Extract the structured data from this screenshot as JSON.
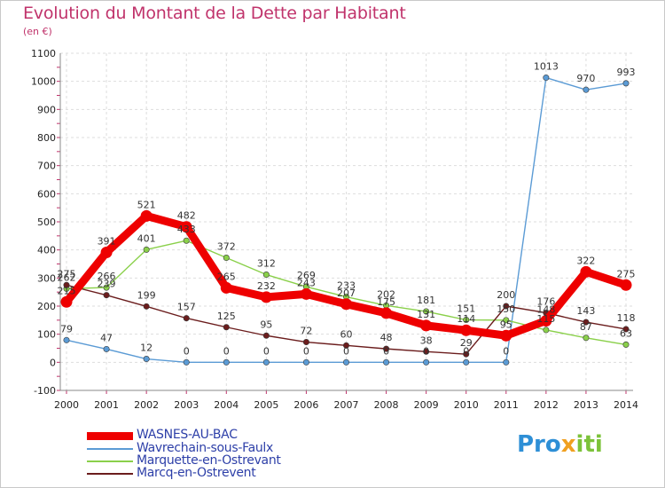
{
  "title": "Evolution du Montant de la Dette par Habitant",
  "subtitle": "(en €)",
  "logo": {
    "part1": "Pro",
    "part2": "x",
    "part3": "iti"
  },
  "chart_data": {
    "type": "line",
    "title": "Evolution du Montant de la Dette par Habitant",
    "subtitle": "(en €)",
    "xlabel": "",
    "ylabel": "",
    "x": [
      2000,
      2001,
      2002,
      2003,
      2004,
      2005,
      2006,
      2007,
      2008,
      2009,
      2010,
      2011,
      2012,
      2013,
      2014
    ],
    "ylim": [
      -100,
      1100
    ],
    "yticks": [
      -100,
      0,
      100,
      200,
      300,
      400,
      500,
      600,
      700,
      800,
      900,
      1000,
      1100
    ],
    "grid": true,
    "legend_position": "bottom-left",
    "series": [
      {
        "name": "WASNES-AU-BAC",
        "color": "#ee0000",
        "values": [
          215,
          391,
          521,
          482,
          265,
          232,
          243,
          207,
          175,
          131,
          114,
          95,
          148,
          322,
          275
        ],
        "labels": [
          "215",
          "391",
          "521",
          "482",
          "265",
          "232",
          "243",
          "207",
          "175",
          "131",
          "114",
          "95",
          "148",
          "322",
          "275"
        ]
      },
      {
        "name": "Wavrechain-sous-Faulx",
        "color": "#5b9bd5",
        "values": [
          79,
          47,
          12,
          0,
          0,
          0,
          0,
          0,
          0,
          0,
          0,
          0,
          1013,
          970,
          993
        ],
        "labels": [
          "79",
          "47",
          "12",
          "0",
          "0",
          "0",
          "0",
          "0",
          "0",
          "0",
          "0",
          "0",
          "1013",
          "970",
          "993"
        ]
      },
      {
        "name": "Marquette-en-Ostrevant",
        "color": "#8ad04a",
        "values": [
          262,
          266,
          401,
          433,
          372,
          312,
          269,
          233,
          202,
          181,
          151,
          150,
          115,
          87,
          63
        ],
        "labels": [
          "262",
          "266",
          "401",
          "433",
          "372",
          "312",
          "269",
          "233",
          "202",
          "181",
          "151",
          "150",
          "115",
          "87",
          "63"
        ]
      },
      {
        "name": "Marcq-en-Ostrevent",
        "color": "#6b1d1d",
        "values": [
          275,
          239,
          199,
          157,
          125,
          95,
          72,
          60,
          48,
          38,
          29,
          200,
          176,
          143,
          118
        ],
        "labels": [
          "275",
          "239",
          "199",
          "157",
          "125",
          "95",
          "72",
          "60",
          "48",
          "38",
          "29",
          "200",
          "176",
          "143",
          "118"
        ]
      }
    ]
  }
}
